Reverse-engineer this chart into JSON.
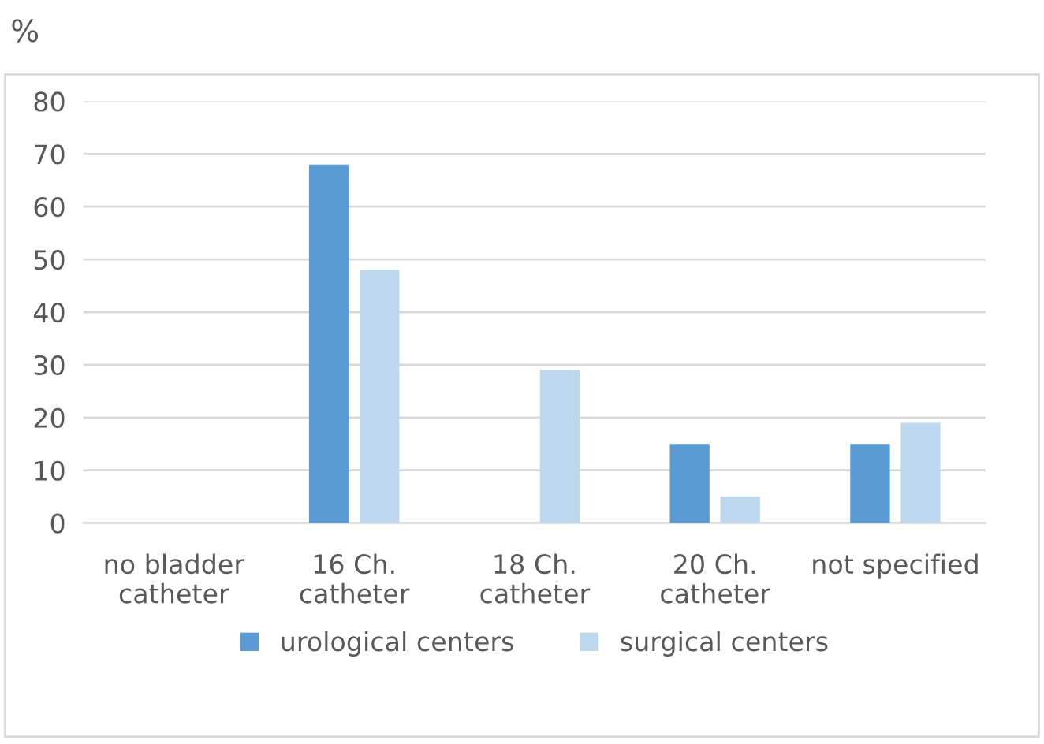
{
  "chart_data": {
    "type": "bar",
    "ylabel": "%",
    "categories": [
      "no bladder\ncatheter",
      "16 Ch.\ncatheter",
      "18 Ch.\ncatheter",
      "20 Ch.\ncatheter",
      "not specified"
    ],
    "series": [
      {
        "name": "urological centers",
        "color": "#5b9bd5",
        "values": [
          0,
          68,
          0,
          15,
          15
        ]
      },
      {
        "name": "surgical centers",
        "color": "#bdd7ee",
        "values": [
          0,
          48,
          29,
          5,
          19
        ]
      }
    ],
    "ylim": [
      0,
      80
    ],
    "yticks": [
      0,
      10,
      20,
      30,
      40,
      50,
      60,
      70,
      80
    ],
    "grid": "y",
    "legend": "bottom"
  }
}
